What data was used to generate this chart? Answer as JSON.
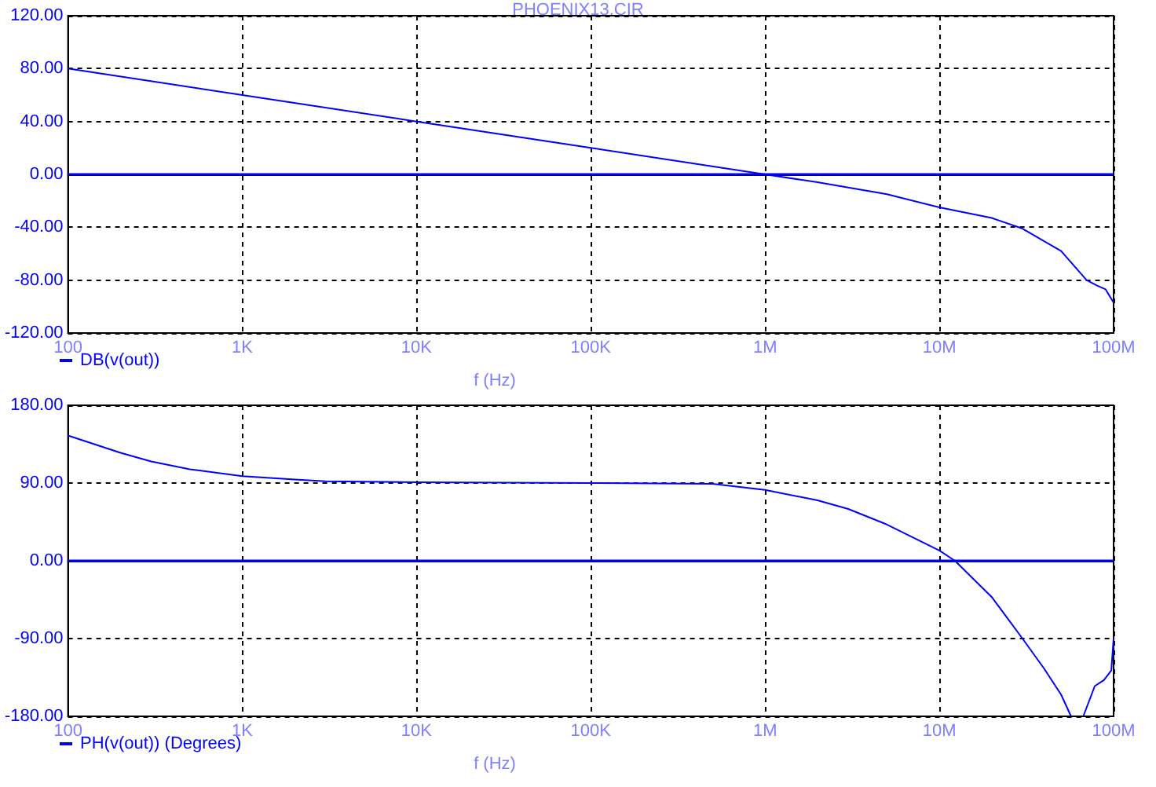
{
  "chart_data": [
    {
      "type": "line",
      "title": "PHOENIX13.CIR",
      "xlabel": "f (Hz)",
      "log": "x",
      "grid": true,
      "legend": "bottom left",
      "marker": "none",
      "xlim": [
        100,
        100000000
      ],
      "ylim": [
        -120,
        120
      ],
      "xticks": [
        {
          "value": 100,
          "label": "100"
        },
        {
          "value": 1000,
          "label": "1K"
        },
        {
          "value": 10000,
          "label": "10K"
        },
        {
          "value": 100000,
          "label": "100K"
        },
        {
          "value": 1000000,
          "label": "1M"
        },
        {
          "value": 10000000,
          "label": "10M"
        },
        {
          "value": 100000000,
          "label": "100M"
        }
      ],
      "yticks": [
        {
          "value": -120,
          "label": "-120.00"
        },
        {
          "value": -80,
          "label": "-80.00"
        },
        {
          "value": -40,
          "label": "-40.00"
        },
        {
          "value": 0,
          "label": "0.00"
        },
        {
          "value": 40,
          "label": "40.00"
        },
        {
          "value": 80,
          "label": "80.00"
        },
        {
          "value": 120,
          "label": "120.00"
        }
      ],
      "ref_lines": [
        {
          "axis": "y",
          "value": 0,
          "label": null,
          "color": "#0000ff"
        }
      ],
      "series": [
        {
          "name": "DB(v(out))",
          "color": "#0000ff",
          "x": [
            100,
            1000,
            10000,
            100000,
            1000000,
            2000000,
            5000000,
            10000000,
            20000000,
            30000000,
            50000000,
            70000000,
            80000000,
            90000000,
            100000000
          ],
          "values": [
            80,
            60,
            40,
            20,
            0,
            -6,
            -15,
            -25,
            -33,
            -41,
            -58,
            -80,
            -84,
            -87,
            -97
          ]
        }
      ]
    },
    {
      "type": "line",
      "xlabel": "f (Hz)",
      "log": "x",
      "grid": true,
      "legend": "bottom left",
      "marker": "none",
      "xlim": [
        100,
        100000000
      ],
      "ylim": [
        -180,
        180
      ],
      "xticks": [
        {
          "value": 100,
          "label": "100"
        },
        {
          "value": 1000,
          "label": "1K"
        },
        {
          "value": 10000,
          "label": "10K"
        },
        {
          "value": 100000,
          "label": "100K"
        },
        {
          "value": 1000000,
          "label": "1M"
        },
        {
          "value": 10000000,
          "label": "10M"
        },
        {
          "value": 100000000,
          "label": "100M"
        }
      ],
      "yticks": [
        {
          "value": -180,
          "label": "-180.00"
        },
        {
          "value": -90,
          "label": "-90.00"
        },
        {
          "value": 0,
          "label": "0.00"
        },
        {
          "value": 90,
          "label": "90.00"
        },
        {
          "value": 180,
          "label": "180.00"
        }
      ],
      "ref_lines": [
        {
          "axis": "y",
          "value": 0,
          "label": null,
          "color": "#0000ff"
        }
      ],
      "series": [
        {
          "name": "PH(v(out)) (Degrees)",
          "color": "#0000ff",
          "x": [
            100,
            200,
            300,
            500,
            1000,
            2000,
            3000,
            10000,
            100000,
            500000,
            1000000,
            2000000,
            3000000,
            5000000,
            10000000,
            12300000,
            20000000,
            30000000,
            40000000,
            50000000,
            57000000,
            62000000,
            67000000,
            78000000,
            88000000,
            97000000,
            100000000
          ],
          "values": [
            145,
            125,
            115,
            106,
            98,
            94,
            92,
            91,
            90,
            89,
            82,
            70,
            60,
            42,
            12,
            0,
            -42,
            -90,
            -125,
            -155,
            -180,
            null,
            -180,
            -145,
            -138,
            -127,
            -90
          ]
        }
      ]
    }
  ]
}
